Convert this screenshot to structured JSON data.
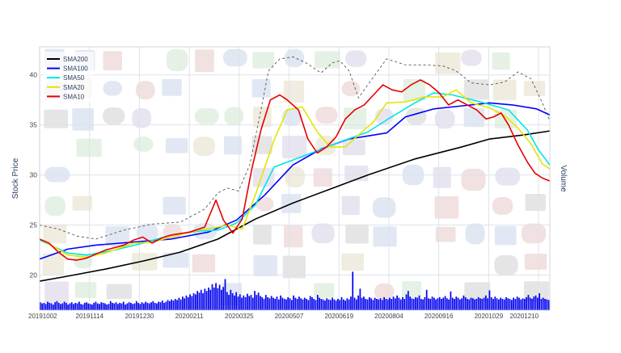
{
  "chart_data": {
    "type": "line",
    "xlabel": "",
    "ylabel": "Stock Price",
    "y2label": "Volume",
    "ylim": [
      16.5,
      42.8
    ],
    "yticks": [
      20,
      25,
      30,
      35,
      40
    ],
    "x_tick_labels": [
      "20191002",
      "20191114",
      "20191230",
      "20200211",
      "20200325",
      "20200507",
      "20200619",
      "20200804",
      "20200916",
      "20201029",
      "20201210"
    ],
    "grid": true,
    "legend_position": "top-left",
    "watermark": "collage of company logos",
    "series": [
      {
        "name": "SMA200",
        "color": "#000000",
        "values": [
          [
            0,
            19.4
          ],
          [
            15,
            19.9
          ],
          [
            35,
            20.6
          ],
          [
            55,
            21.4
          ],
          [
            75,
            22.3
          ],
          [
            95,
            23.6
          ],
          [
            115,
            25.6
          ],
          [
            135,
            27.2
          ],
          [
            155,
            28.6
          ],
          [
            175,
            30.0
          ],
          [
            200,
            31.6
          ],
          [
            225,
            32.8
          ],
          [
            240,
            33.6
          ],
          [
            258,
            34.0
          ],
          [
            272,
            34.4
          ]
        ]
      },
      {
        "name": "SMA100",
        "color": "#0000ff",
        "values": [
          [
            0,
            21.6
          ],
          [
            15,
            22.6
          ],
          [
            30,
            23.0
          ],
          [
            50,
            23.3
          ],
          [
            70,
            23.6
          ],
          [
            90,
            24.3
          ],
          [
            105,
            25.5
          ],
          [
            120,
            28.0
          ],
          [
            135,
            31.0
          ],
          [
            150,
            32.6
          ],
          [
            165,
            33.6
          ],
          [
            185,
            34.2
          ],
          [
            195,
            35.8
          ],
          [
            210,
            36.6
          ],
          [
            225,
            36.9
          ],
          [
            240,
            37.2
          ],
          [
            252,
            37.0
          ],
          [
            265,
            36.6
          ],
          [
            272,
            36.0
          ]
        ]
      },
      {
        "name": "SMA50",
        "color": "#00e5e5",
        "values": [
          [
            0,
            23.5
          ],
          [
            15,
            22.2
          ],
          [
            25,
            22.0
          ],
          [
            40,
            22.5
          ],
          [
            55,
            23.2
          ],
          [
            70,
            24.0
          ],
          [
            85,
            24.4
          ],
          [
            95,
            24.5
          ],
          [
            105,
            25.2
          ],
          [
            115,
            27.0
          ],
          [
            125,
            30.8
          ],
          [
            135,
            31.5
          ],
          [
            145,
            32.2
          ],
          [
            160,
            33.3
          ],
          [
            175,
            34.3
          ],
          [
            185,
            35.5
          ],
          [
            200,
            37.2
          ],
          [
            210,
            38.2
          ],
          [
            220,
            38.0
          ],
          [
            235,
            37.3
          ],
          [
            250,
            36.5
          ],
          [
            260,
            34.5
          ],
          [
            266,
            32.5
          ],
          [
            272,
            31.0
          ]
        ]
      },
      {
        "name": "SMA20",
        "color": "#e5e500",
        "values": [
          [
            0,
            23.6
          ],
          [
            8,
            22.8
          ],
          [
            15,
            22.0
          ],
          [
            25,
            21.8
          ],
          [
            35,
            22.2
          ],
          [
            50,
            23.2
          ],
          [
            60,
            23.3
          ],
          [
            70,
            23.8
          ],
          [
            85,
            24.5
          ],
          [
            95,
            24.8
          ],
          [
            100,
            25.0
          ],
          [
            108,
            24.6
          ],
          [
            115,
            28.0
          ],
          [
            125,
            33.5
          ],
          [
            132,
            36.5
          ],
          [
            140,
            36.8
          ],
          [
            148,
            34.3
          ],
          [
            155,
            32.8
          ],
          [
            163,
            32.8
          ],
          [
            170,
            34.0
          ],
          [
            178,
            35.3
          ],
          [
            185,
            37.2
          ],
          [
            195,
            37.3
          ],
          [
            205,
            37.8
          ],
          [
            215,
            37.8
          ],
          [
            222,
            38.5
          ],
          [
            230,
            37.2
          ],
          [
            240,
            36.7
          ],
          [
            248,
            35.9
          ],
          [
            255,
            34.7
          ],
          [
            262,
            33.1
          ],
          [
            268,
            31.1
          ],
          [
            272,
            30.6
          ]
        ]
      },
      {
        "name": "SMA10",
        "color": "#e60000",
        "values": [
          [
            0,
            23.6
          ],
          [
            5,
            23.2
          ],
          [
            10,
            22.3
          ],
          [
            15,
            21.6
          ],
          [
            20,
            21.5
          ],
          [
            25,
            21.7
          ],
          [
            35,
            22.5
          ],
          [
            45,
            23.0
          ],
          [
            50,
            23.5
          ],
          [
            55,
            23.8
          ],
          [
            60,
            23.2
          ],
          [
            65,
            23.7
          ],
          [
            70,
            24.0
          ],
          [
            80,
            24.3
          ],
          [
            88,
            24.8
          ],
          [
            94,
            27.5
          ],
          [
            98,
            25.5
          ],
          [
            103,
            24.2
          ],
          [
            108,
            25.6
          ],
          [
            113,
            30.5
          ],
          [
            118,
            34.5
          ],
          [
            123,
            37.5
          ],
          [
            128,
            38.0
          ],
          [
            132,
            37.5
          ],
          [
            138,
            36.5
          ],
          [
            143,
            33.6
          ],
          [
            148,
            32.2
          ],
          [
            153,
            32.8
          ],
          [
            158,
            33.8
          ],
          [
            163,
            35.6
          ],
          [
            168,
            36.5
          ],
          [
            173,
            37.0
          ],
          [
            178,
            38.0
          ],
          [
            183,
            39.0
          ],
          [
            188,
            38.5
          ],
          [
            193,
            38.3
          ],
          [
            198,
            39.0
          ],
          [
            203,
            39.5
          ],
          [
            208,
            39.0
          ],
          [
            213,
            38.2
          ],
          [
            218,
            37.0
          ],
          [
            223,
            37.5
          ],
          [
            228,
            37.0
          ],
          [
            233,
            36.5
          ],
          [
            238,
            35.6
          ],
          [
            242,
            35.8
          ],
          [
            246,
            36.2
          ],
          [
            250,
            35.0
          ],
          [
            255,
            33.0
          ],
          [
            260,
            31.3
          ],
          [
            264,
            30.2
          ],
          [
            268,
            29.7
          ],
          [
            272,
            29.4
          ]
        ]
      }
    ],
    "bollinger_bands": {
      "color": "#555555",
      "upper": [
        [
          0,
          25.0
        ],
        [
          10,
          24.6
        ],
        [
          20,
          23.9
        ],
        [
          30,
          23.6
        ],
        [
          45,
          24.5
        ],
        [
          60,
          25.1
        ],
        [
          75,
          25.3
        ],
        [
          88,
          26.6
        ],
        [
          95,
          28.2
        ],
        [
          100,
          28.7
        ],
        [
          106,
          28.4
        ],
        [
          112,
          31.0
        ],
        [
          118,
          36.5
        ],
        [
          122,
          40.4
        ],
        [
          128,
          41.6
        ],
        [
          135,
          41.8
        ],
        [
          142,
          41.2
        ],
        [
          150,
          40.2
        ],
        [
          156,
          41.2
        ],
        [
          160,
          41.4
        ],
        [
          165,
          40.4
        ],
        [
          170,
          37.7
        ],
        [
          178,
          39.8
        ],
        [
          185,
          41.6
        ],
        [
          195,
          41.0
        ],
        [
          205,
          41.0
        ],
        [
          215,
          40.9
        ],
        [
          222,
          40.4
        ],
        [
          230,
          39.2
        ],
        [
          240,
          39.0
        ],
        [
          248,
          39.3
        ],
        [
          255,
          40.3
        ],
        [
          262,
          39.6
        ],
        [
          268,
          37.2
        ],
        [
          272,
          35.4
        ]
      ]
    },
    "volume": {
      "color": "#0000ee",
      "values": [
        1.4,
        1.2,
        1.3,
        1.1,
        1.5,
        1.3,
        1.2,
        1.0,
        1.4,
        1.6,
        1.3,
        1.1,
        1.2,
        1.5,
        1.3,
        1.0,
        1.2,
        1.4,
        1.1,
        1.3,
        1.2,
        1.5,
        1.1,
        1.0,
        1.3,
        1.4,
        1.2,
        1.1,
        1.0,
        1.3,
        1.5,
        1.2,
        1.1,
        1.4,
        1.3,
        1.2,
        1.0,
        1.1,
        1.6,
        1.3,
        1.2,
        1.4,
        1.1,
        1.3,
        1.2,
        1.5,
        1.0,
        1.2,
        1.4,
        1.3,
        1.1,
        1.2,
        1.6,
        1.3,
        1.1,
        1.4,
        1.2,
        1.5,
        1.3,
        1.2,
        1.4,
        1.6,
        1.3,
        1.2,
        1.5,
        1.4,
        1.7,
        1.3,
        1.5,
        1.8,
        1.6,
        1.9,
        1.7,
        2.0,
        1.8,
        2.2,
        1.9,
        2.4,
        2.1,
        2.6,
        2.3,
        2.8,
        2.5,
        3.0,
        2.8,
        3.4,
        3.1,
        3.6,
        3.0,
        3.8,
        3.4,
        4.0,
        3.6,
        4.6,
        4.0,
        4.8,
        3.9,
        4.5,
        3.6,
        4.1,
        5.5,
        3.2,
        2.7,
        3.6,
        3.0,
        2.6,
        3.2,
        2.4,
        2.8,
        2.2,
        2.6,
        2.3,
        2.9,
        2.5,
        2.7,
        2.2,
        3.4,
        2.7,
        3.1,
        2.5,
        2.3,
        2.0,
        2.7,
        2.3,
        2.1,
        2.5,
        2.2,
        2.0,
        2.4,
        1.9,
        2.6,
        2.2,
        2.0,
        1.9,
        2.3,
        2.1,
        1.8,
        2.6,
        2.2,
        2.0,
        2.4,
        2.1,
        1.9,
        2.2,
        2.0,
        1.8,
        2.5,
        2.3,
        2.0,
        1.8,
        2.7,
        2.2,
        2.0,
        1.9,
        1.7,
        2.1,
        1.9,
        1.8,
        2.2,
        1.9,
        1.7,
        2.0,
        1.8,
        2.3,
        1.9,
        1.7,
        2.1,
        1.9,
        2.4,
        6.8,
        2.2,
        1.9,
        2.6,
        3.8,
        2.2,
        2.4,
        2.0,
        1.9,
        2.3,
        2.1,
        1.8,
        2.2,
        2.0,
        1.9,
        2.1,
        1.8,
        2.3,
        2.0,
        1.9,
        2.2,
        2.0,
        2.4,
        2.1,
        2.6,
        2.2,
        1.9,
        2.3,
        2.0,
        2.8,
        3.4,
        2.4,
        2.1,
        2.0,
        2.3,
        2.2,
        2.6,
        2.0,
        1.9,
        2.3,
        3.6,
        2.1,
        2.0,
        2.4,
        2.2,
        1.9,
        2.1,
        2.3,
        2.0,
        2.2,
        2.5,
        2.1,
        1.9,
        3.3,
        2.2,
        2.0,
        2.4,
        2.2,
        1.9,
        2.1,
        2.6,
        2.3,
        2.0,
        1.9,
        2.2,
        2.1,
        1.9,
        2.0,
        2.3,
        2.1,
        2.0,
        2.2,
        2.6,
        2.1,
        3.5,
        2.3,
        2.0,
        2.4,
        2.1,
        1.9,
        2.2,
        2.0,
        1.9,
        2.3,
        2.1,
        2.0,
        1.8,
        2.2,
        2.0,
        2.4,
        2.2,
        1.9,
        2.1,
        2.0,
        2.3,
        2.7,
        2.2,
        2.0,
        2.4,
        2.6,
        2.2,
        3.0,
        2.0,
        2.2,
        2.0,
        1.9,
        1.8
      ]
    }
  }
}
